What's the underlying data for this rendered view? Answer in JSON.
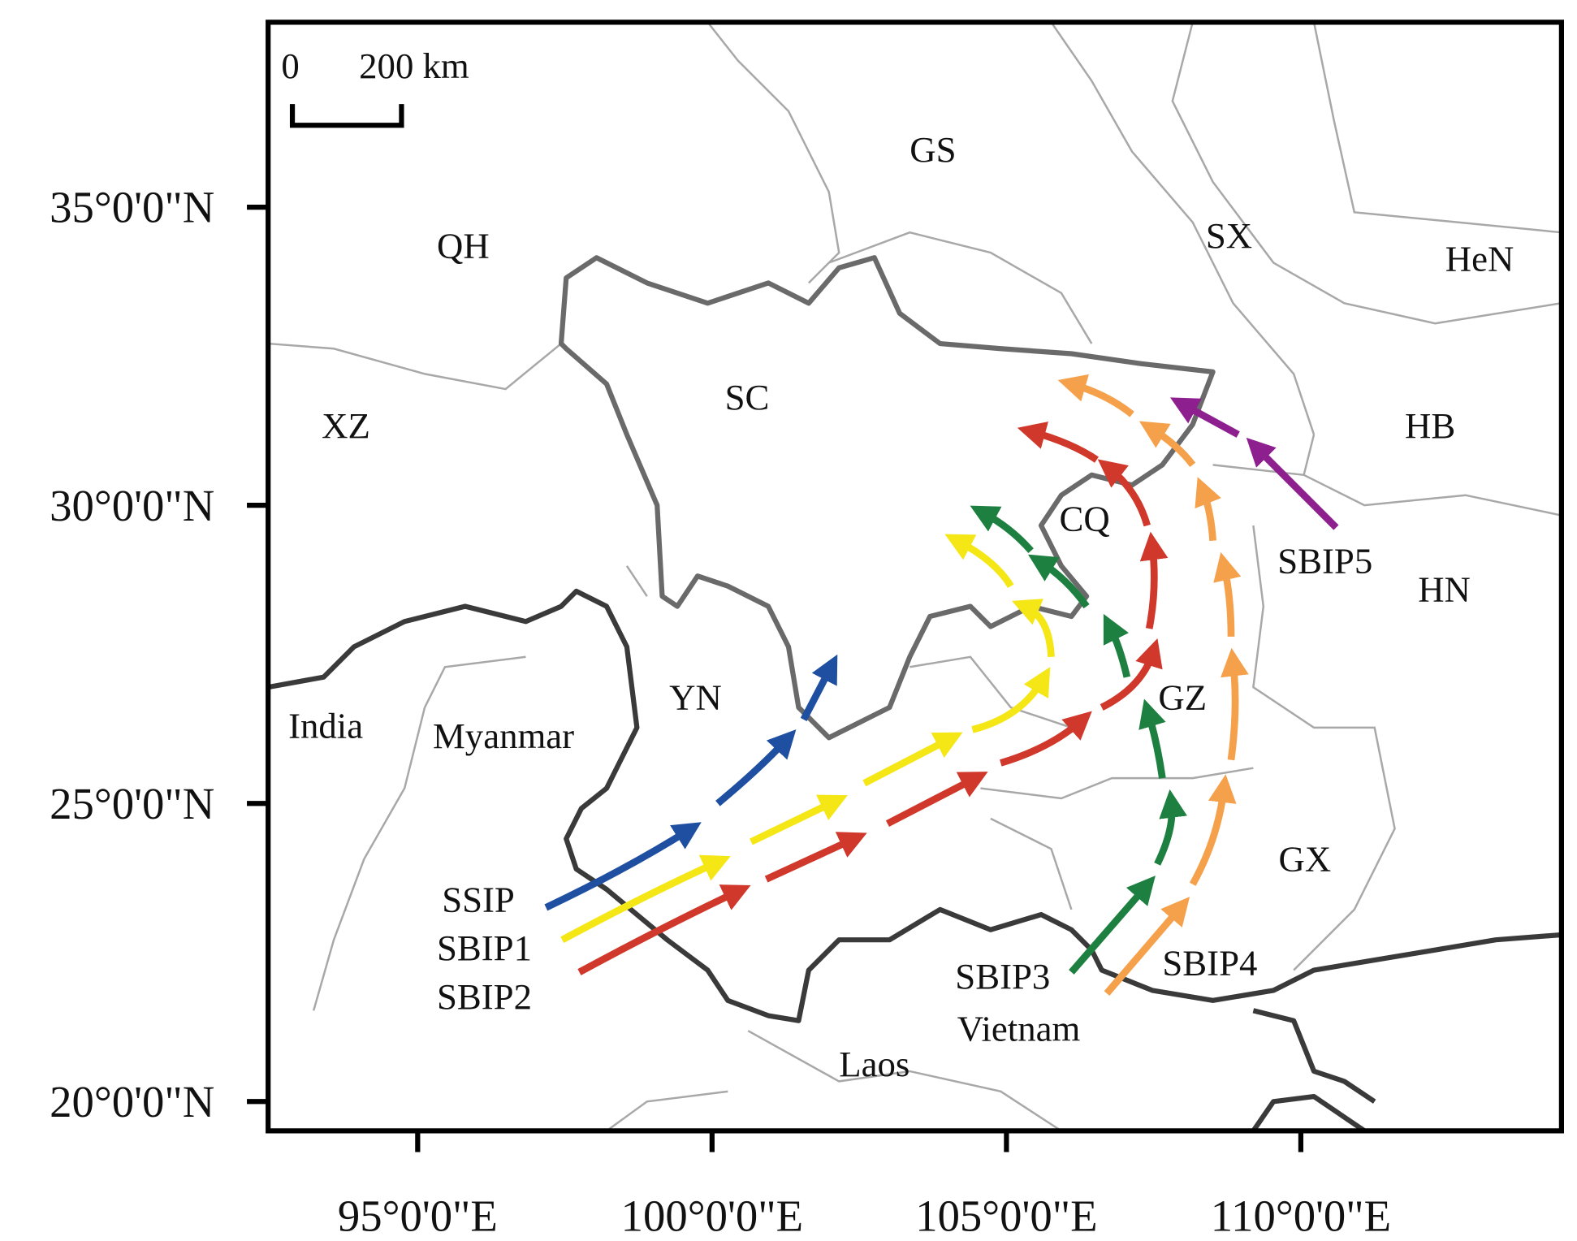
{
  "scale_bar": {
    "start": "0",
    "end": "200 km"
  },
  "lat_ticks": [
    {
      "value": 35,
      "label": "35°0'0\"N"
    },
    {
      "value": 30,
      "label": "30°0'0\"N"
    },
    {
      "value": 25,
      "label": "25°0'0\"N"
    },
    {
      "value": 20,
      "label": "20°0'0\"N"
    }
  ],
  "lon_ticks": [
    {
      "value": 95,
      "label": "95°0'0\"E"
    },
    {
      "value": 100,
      "label": "100°0'0\"E"
    },
    {
      "value": 105,
      "label": "105°0'0\"E"
    },
    {
      "value": 110,
      "label": "110°0'0\"E"
    }
  ],
  "regions": [
    "GS",
    "QH",
    "SX",
    "HeN",
    "XZ",
    "SC",
    "HB",
    "CQ",
    "HN",
    "YN",
    "GZ",
    "India",
    "Myanmar",
    "GX",
    "Vietnam",
    "Laos"
  ],
  "routes": [
    "SSIP",
    "SBIP1",
    "SBIP2",
    "SBIP3",
    "SBIP4",
    "SBIP5"
  ]
}
